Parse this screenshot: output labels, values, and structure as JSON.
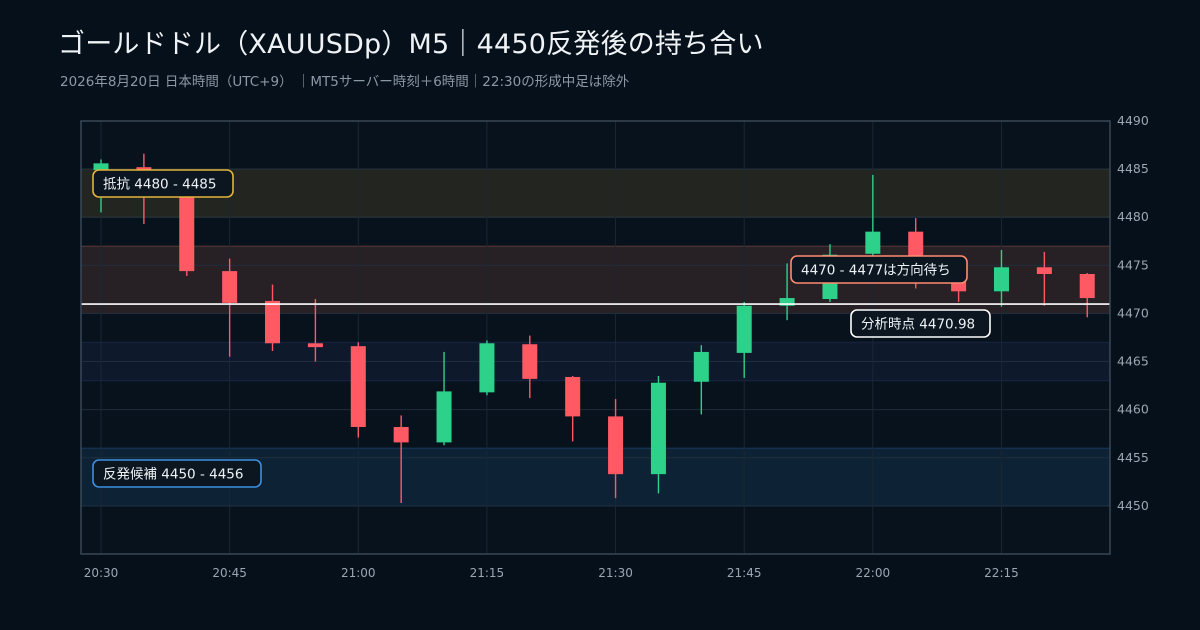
{
  "header": {
    "title": "ゴールドドル（XAUUSDp）M5｜4450反発後の持ち合い",
    "subtitle": "2026年8月20日 日本時間（UTC+9） ｜MT5サーバー時刻＋6時間｜22:30の形成中足は除外"
  },
  "colors": {
    "background": "#06101a",
    "up": "#2ed18a",
    "down": "#ff5a64",
    "resistance_zone": "#e2b43a",
    "support_zone": "#3d8fe0",
    "neutral_zone": "#ff8a70",
    "mid_band": "#3c4a9a",
    "current_line": "#ffffff"
  },
  "chart_data": {
    "type": "candlestick",
    "ylim": [
      4445,
      4490
    ],
    "y_ticks": [
      "4450",
      "4455",
      "4460",
      "4465",
      "4470",
      "4475",
      "4480",
      "4485",
      "4490"
    ],
    "x_ticks": [
      "20:30",
      "20:45",
      "21:00",
      "21:15",
      "21:30",
      "21:45",
      "22:00",
      "22:15"
    ],
    "grid": true,
    "candles": [
      {
        "time": "20:30",
        "open": 4484.9,
        "high": 4486.0,
        "low": 4480.5,
        "close": 4485.6
      },
      {
        "time": "20:35",
        "open": 4485.2,
        "high": 4486.6,
        "low": 4479.3,
        "close": 4482.4
      },
      {
        "time": "20:40",
        "open": 4482.4,
        "high": 4483.2,
        "low": 4473.9,
        "close": 4474.4
      },
      {
        "time": "20:45",
        "open": 4474.4,
        "high": 4475.7,
        "low": 4465.5,
        "close": 4471.1
      },
      {
        "time": "20:50",
        "open": 4471.3,
        "high": 4473.0,
        "low": 4466.1,
        "close": 4466.9
      },
      {
        "time": "20:55",
        "open": 4466.9,
        "high": 4471.5,
        "low": 4465.0,
        "close": 4466.5
      },
      {
        "time": "21:00",
        "open": 4466.6,
        "high": 4467.0,
        "low": 4457.1,
        "close": 4458.2
      },
      {
        "time": "21:05",
        "open": 4458.2,
        "high": 4459.4,
        "low": 4450.3,
        "close": 4456.6
      },
      {
        "time": "21:10",
        "open": 4456.6,
        "high": 4466.0,
        "low": 4456.3,
        "close": 4461.9
      },
      {
        "time": "21:15",
        "open": 4461.8,
        "high": 4467.2,
        "low": 4461.5,
        "close": 4466.9
      },
      {
        "time": "21:20",
        "open": 4466.8,
        "high": 4467.7,
        "low": 4461.2,
        "close": 4463.2
      },
      {
        "time": "21:25",
        "open": 4463.4,
        "high": 4463.5,
        "low": 4456.7,
        "close": 4459.3
      },
      {
        "time": "21:30",
        "open": 4459.3,
        "high": 4461.1,
        "low": 4450.8,
        "close": 4453.3
      },
      {
        "time": "21:35",
        "open": 4453.3,
        "high": 4463.5,
        "low": 4451.3,
        "close": 4462.8
      },
      {
        "time": "21:40",
        "open": 4462.9,
        "high": 4466.7,
        "low": 4459.5,
        "close": 4466.0
      },
      {
        "time": "21:45",
        "open": 4465.9,
        "high": 4471.2,
        "low": 4463.3,
        "close": 4470.8
      },
      {
        "time": "21:50",
        "open": 4470.8,
        "high": 4475.2,
        "low": 4469.3,
        "close": 4471.6
      },
      {
        "time": "21:55",
        "open": 4471.5,
        "high": 4477.2,
        "low": 4471.2,
        "close": 4476.1
      },
      {
        "time": "22:00",
        "open": 4476.2,
        "high": 4484.4,
        "low": 4475.6,
        "close": 4478.5
      },
      {
        "time": "22:05",
        "open": 4478.5,
        "high": 4479.9,
        "low": 4472.6,
        "close": 4474.9
      },
      {
        "time": "22:10",
        "open": 4474.8,
        "high": 4475.5,
        "low": 4471.2,
        "close": 4472.3
      },
      {
        "time": "22:15",
        "open": 4472.3,
        "high": 4476.6,
        "low": 4470.7,
        "close": 4474.8
      },
      {
        "time": "22:20",
        "open": 4474.8,
        "high": 4476.4,
        "low": 4470.8,
        "close": 4474.1
      },
      {
        "time": "22:25",
        "open": 4474.1,
        "high": 4474.2,
        "low": 4469.6,
        "close": 4471.6
      }
    ],
    "zones": [
      {
        "label": "抵抗 4480 - 4485",
        "low": 4480,
        "high": 4485,
        "color": "#e2b43a"
      },
      {
        "label": "4470 - 4477は方向待ち",
        "low": 4470,
        "high": 4477,
        "color": "#ff8a70"
      },
      {
        "label": "",
        "low": 4463,
        "high": 4467,
        "color": "#3c4a9a"
      },
      {
        "label": "反発候補 4450 - 4456",
        "low": 4450,
        "high": 4456,
        "color": "#3d8fe0"
      }
    ],
    "current_price": {
      "value": 4470.98,
      "label": "分析時点 4470.98"
    }
  }
}
